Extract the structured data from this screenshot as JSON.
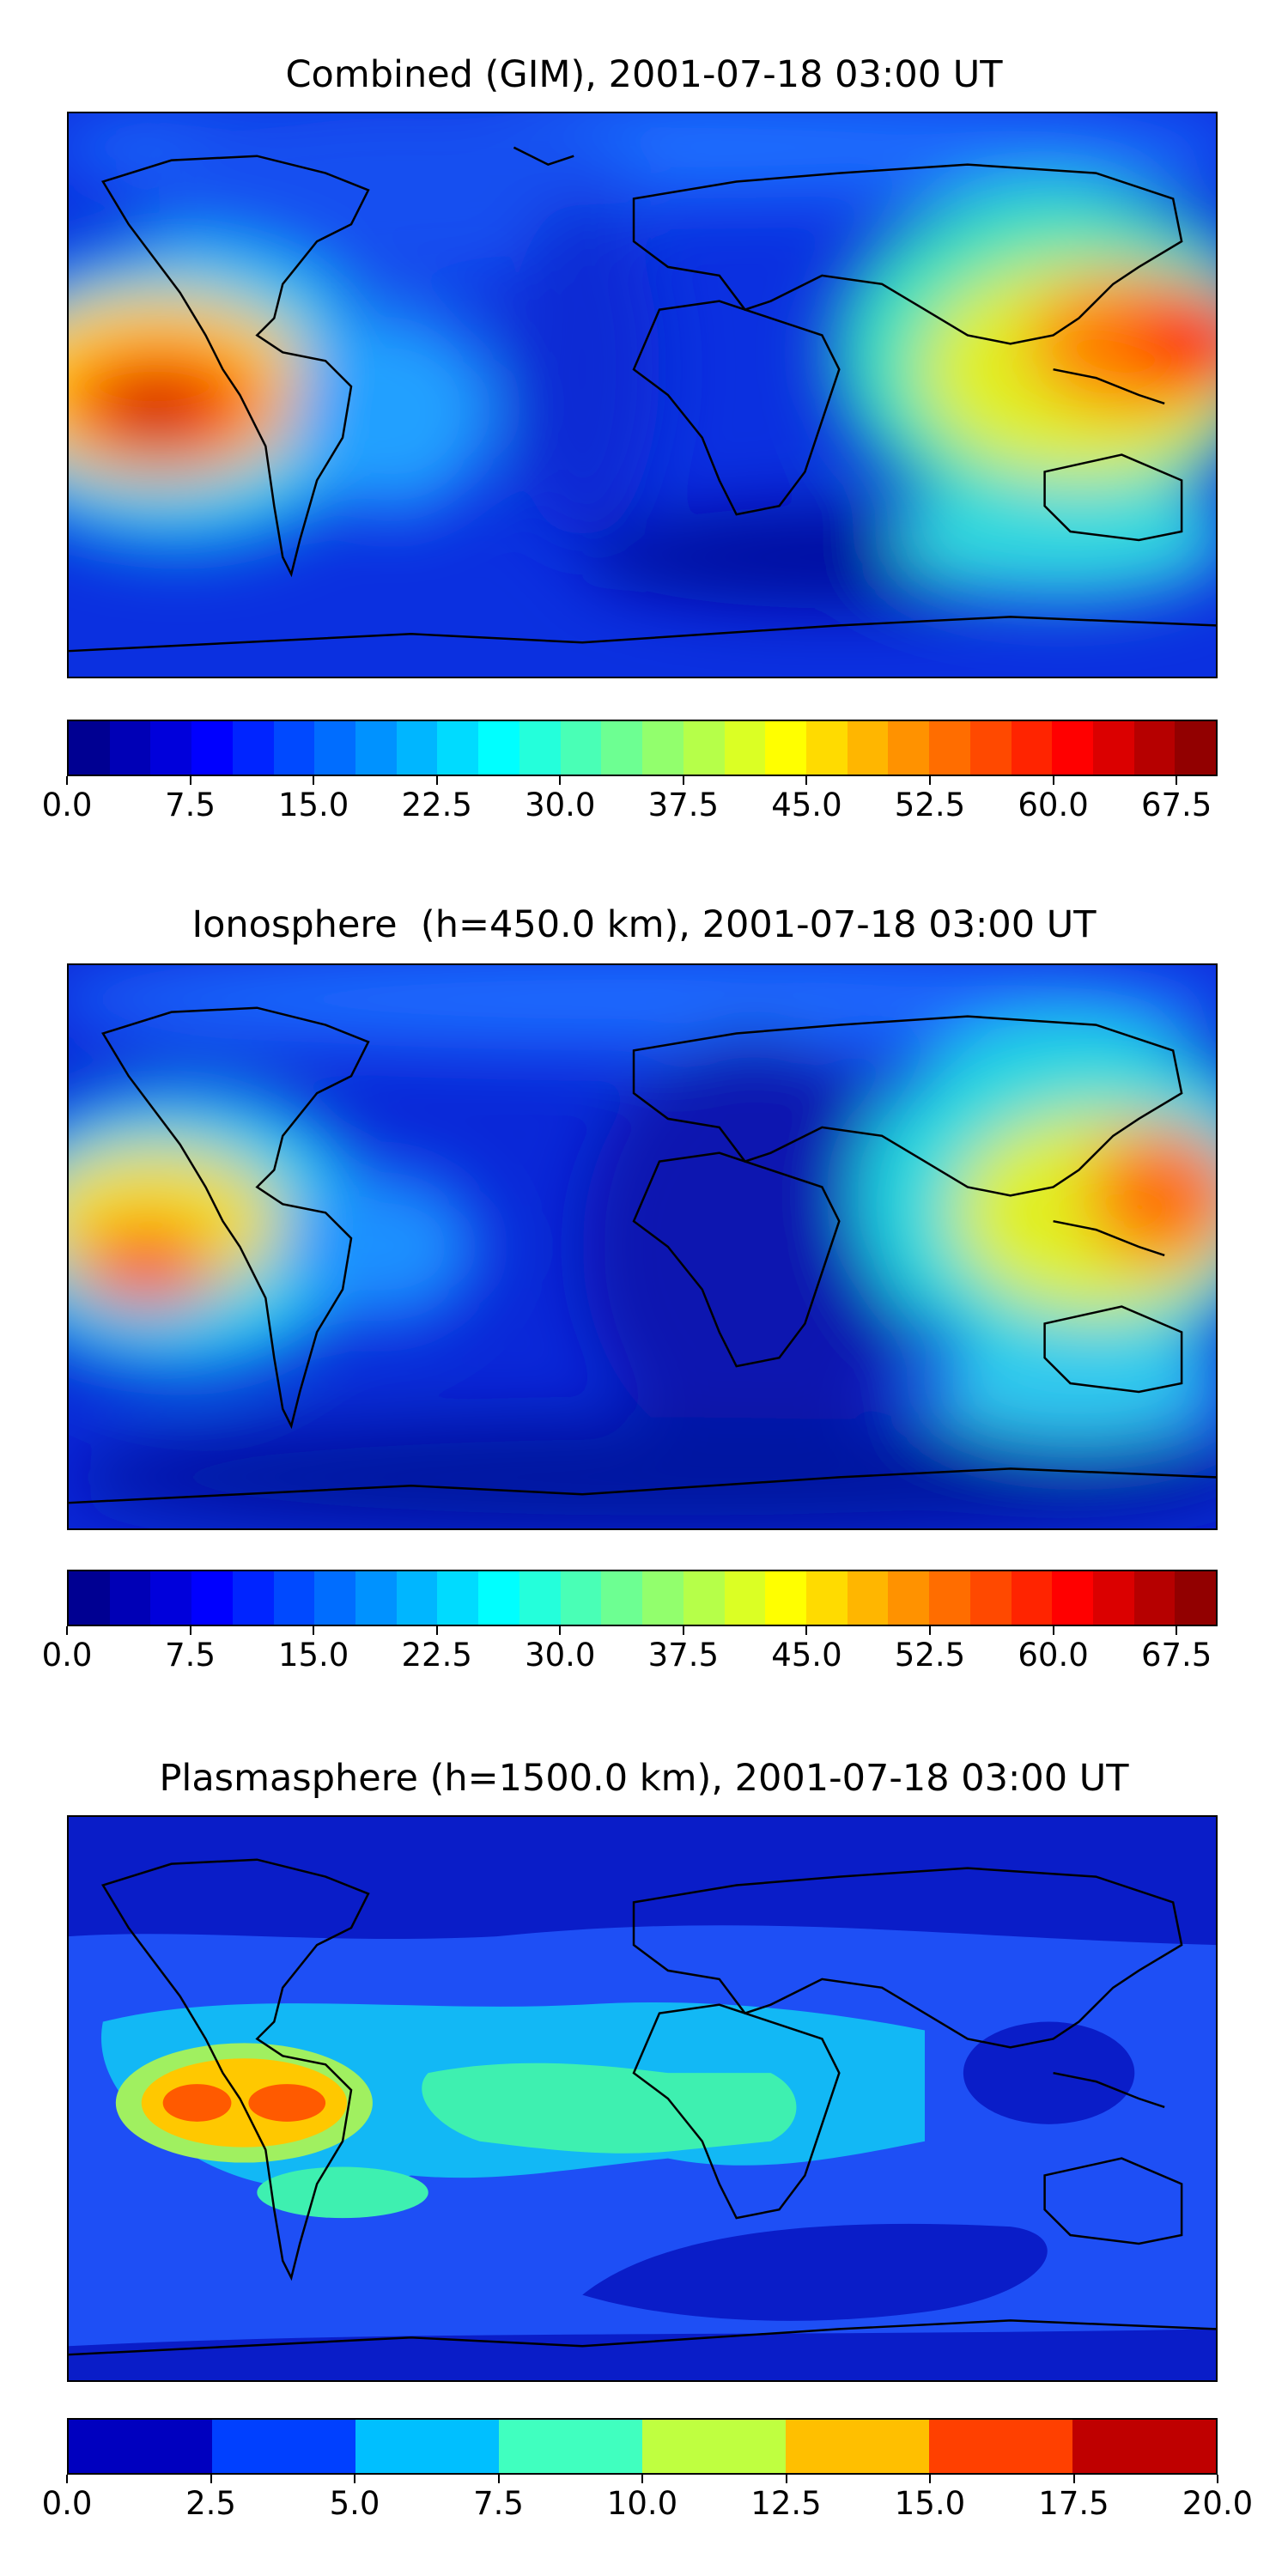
{
  "panels": [
    {
      "title": "Combined (GIM), 2001-07-18 03:00 UT",
      "colorbar": {
        "ticks": [
          "0.0",
          "7.5",
          "15.0",
          "22.5",
          "30.0",
          "37.5",
          "45.0",
          "52.5",
          "60.0",
          "67.5"
        ],
        "range": [
          0,
          70
        ],
        "levels": 28
      }
    },
    {
      "title": "Ionosphere  (h=450.0 km), 2001-07-18 03:00 UT",
      "colorbar": {
        "ticks": [
          "0.0",
          "7.5",
          "15.0",
          "22.5",
          "30.0",
          "37.5",
          "45.0",
          "52.5",
          "60.0",
          "67.5"
        ],
        "range": [
          0,
          70
        ],
        "levels": 28
      }
    },
    {
      "title": "Plasmasphere (h=1500.0 km), 2001-07-18 03:00 UT",
      "colorbar": {
        "ticks": [
          "0.0",
          "2.5",
          "5.0",
          "7.5",
          "10.0",
          "12.5",
          "15.0",
          "17.5",
          "20.0"
        ],
        "range": [
          0,
          20
        ],
        "levels": 8
      }
    }
  ],
  "colormap": "jet"
}
